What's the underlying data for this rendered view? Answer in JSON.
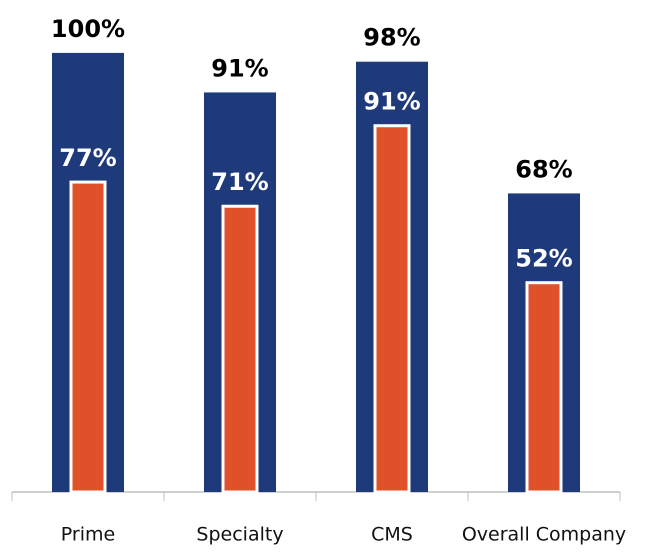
{
  "chart_data": {
    "type": "bar",
    "categories": [
      "Prime",
      "Specialty",
      "CMS",
      "Overall Company"
    ],
    "series": [
      {
        "color": "#1f3a7a",
        "values": [
          100,
          91,
          98,
          68
        ],
        "value_labels": [
          "100%",
          "91%",
          "98%",
          "68%"
        ]
      },
      {
        "color": "#e0512a",
        "values": [
          77,
          71,
          91,
          52
        ],
        "value_labels": [
          "77%",
          "71%",
          "91%",
          "52%"
        ],
        "axis": "y2"
      }
    ],
    "ylim": [
      0,
      110
    ],
    "y2lim": [
      0,
      120
    ]
  }
}
